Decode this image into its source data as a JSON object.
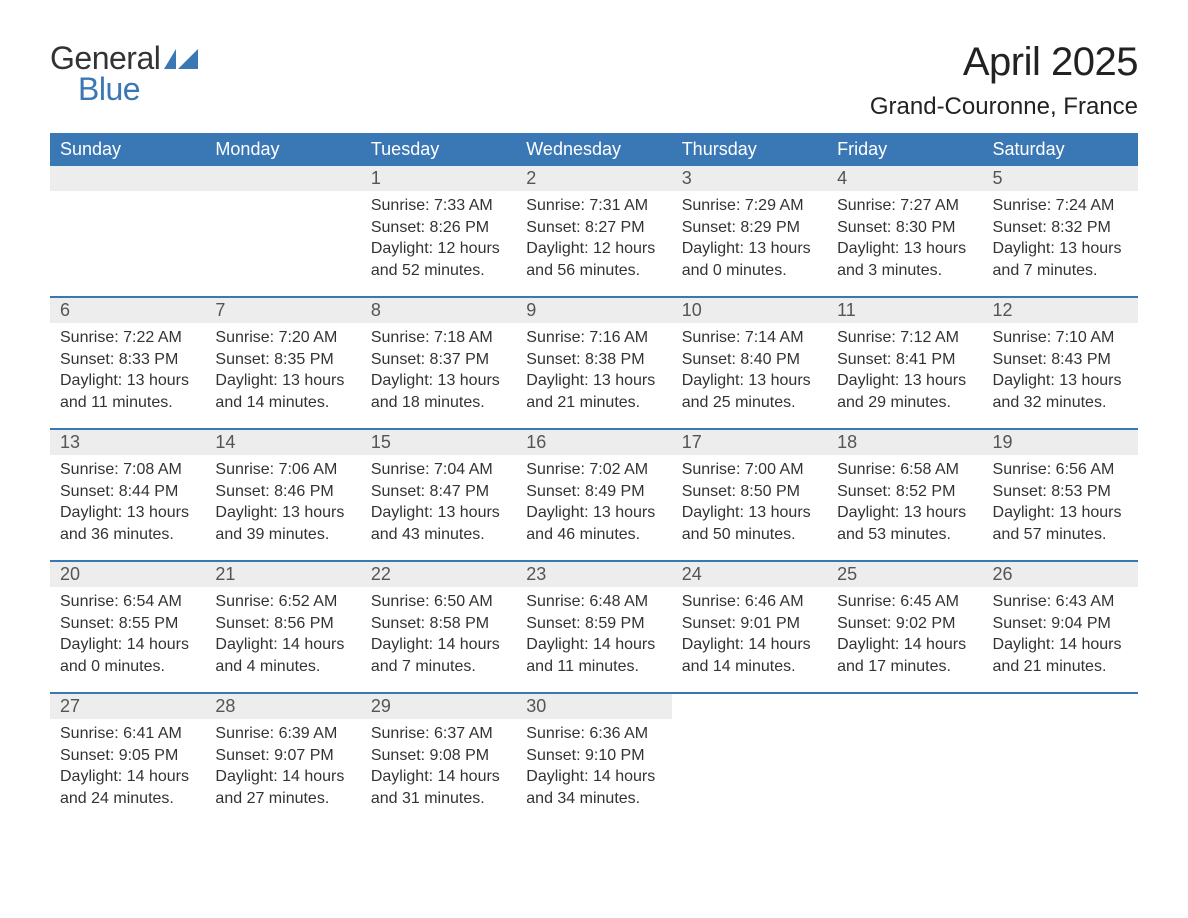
{
  "logo": {
    "text_general": "General",
    "text_blue": "Blue",
    "mark_color": "#3a78b5"
  },
  "header": {
    "month_title": "April 2025",
    "location": "Grand-Couronne, France"
  },
  "colors": {
    "header_bg": "#3a78b5",
    "header_text": "#ffffff",
    "daynum_bg": "#ededed",
    "daynum_text": "#555555",
    "body_text": "#333333",
    "week_border": "#3a78b5",
    "page_bg": "#ffffff"
  },
  "fonts": {
    "title_month_size_pt": 30,
    "title_location_size_pt": 18,
    "header_cell_size_pt": 14,
    "daynum_size_pt": 14,
    "content_size_pt": 12,
    "family": "Segoe UI / Arial"
  },
  "calendar": {
    "day_names": [
      "Sunday",
      "Monday",
      "Tuesday",
      "Wednesday",
      "Thursday",
      "Friday",
      "Saturday"
    ],
    "labels": {
      "sunrise_prefix": "Sunrise: ",
      "sunset_prefix": "Sunset: ",
      "daylight_prefix": "Daylight: "
    },
    "weeks": [
      [
        {
          "blank": true
        },
        {
          "blank": true
        },
        {
          "day": "1",
          "sunrise": "7:33 AM",
          "sunset": "8:26 PM",
          "daylight": "12 hours and 52 minutes."
        },
        {
          "day": "2",
          "sunrise": "7:31 AM",
          "sunset": "8:27 PM",
          "daylight": "12 hours and 56 minutes."
        },
        {
          "day": "3",
          "sunrise": "7:29 AM",
          "sunset": "8:29 PM",
          "daylight": "13 hours and 0 minutes."
        },
        {
          "day": "4",
          "sunrise": "7:27 AM",
          "sunset": "8:30 PM",
          "daylight": "13 hours and 3 minutes."
        },
        {
          "day": "5",
          "sunrise": "7:24 AM",
          "sunset": "8:32 PM",
          "daylight": "13 hours and 7 minutes."
        }
      ],
      [
        {
          "day": "6",
          "sunrise": "7:22 AM",
          "sunset": "8:33 PM",
          "daylight": "13 hours and 11 minutes."
        },
        {
          "day": "7",
          "sunrise": "7:20 AM",
          "sunset": "8:35 PM",
          "daylight": "13 hours and 14 minutes."
        },
        {
          "day": "8",
          "sunrise": "7:18 AM",
          "sunset": "8:37 PM",
          "daylight": "13 hours and 18 minutes."
        },
        {
          "day": "9",
          "sunrise": "7:16 AM",
          "sunset": "8:38 PM",
          "daylight": "13 hours and 21 minutes."
        },
        {
          "day": "10",
          "sunrise": "7:14 AM",
          "sunset": "8:40 PM",
          "daylight": "13 hours and 25 minutes."
        },
        {
          "day": "11",
          "sunrise": "7:12 AM",
          "sunset": "8:41 PM",
          "daylight": "13 hours and 29 minutes."
        },
        {
          "day": "12",
          "sunrise": "7:10 AM",
          "sunset": "8:43 PM",
          "daylight": "13 hours and 32 minutes."
        }
      ],
      [
        {
          "day": "13",
          "sunrise": "7:08 AM",
          "sunset": "8:44 PM",
          "daylight": "13 hours and 36 minutes."
        },
        {
          "day": "14",
          "sunrise": "7:06 AM",
          "sunset": "8:46 PM",
          "daylight": "13 hours and 39 minutes."
        },
        {
          "day": "15",
          "sunrise": "7:04 AM",
          "sunset": "8:47 PM",
          "daylight": "13 hours and 43 minutes."
        },
        {
          "day": "16",
          "sunrise": "7:02 AM",
          "sunset": "8:49 PM",
          "daylight": "13 hours and 46 minutes."
        },
        {
          "day": "17",
          "sunrise": "7:00 AM",
          "sunset": "8:50 PM",
          "daylight": "13 hours and 50 minutes."
        },
        {
          "day": "18",
          "sunrise": "6:58 AM",
          "sunset": "8:52 PM",
          "daylight": "13 hours and 53 minutes."
        },
        {
          "day": "19",
          "sunrise": "6:56 AM",
          "sunset": "8:53 PM",
          "daylight": "13 hours and 57 minutes."
        }
      ],
      [
        {
          "day": "20",
          "sunrise": "6:54 AM",
          "sunset": "8:55 PM",
          "daylight": "14 hours and 0 minutes."
        },
        {
          "day": "21",
          "sunrise": "6:52 AM",
          "sunset": "8:56 PM",
          "daylight": "14 hours and 4 minutes."
        },
        {
          "day": "22",
          "sunrise": "6:50 AM",
          "sunset": "8:58 PM",
          "daylight": "14 hours and 7 minutes."
        },
        {
          "day": "23",
          "sunrise": "6:48 AM",
          "sunset": "8:59 PM",
          "daylight": "14 hours and 11 minutes."
        },
        {
          "day": "24",
          "sunrise": "6:46 AM",
          "sunset": "9:01 PM",
          "daylight": "14 hours and 14 minutes."
        },
        {
          "day": "25",
          "sunrise": "6:45 AM",
          "sunset": "9:02 PM",
          "daylight": "14 hours and 17 minutes."
        },
        {
          "day": "26",
          "sunrise": "6:43 AM",
          "sunset": "9:04 PM",
          "daylight": "14 hours and 21 minutes."
        }
      ],
      [
        {
          "day": "27",
          "sunrise": "6:41 AM",
          "sunset": "9:05 PM",
          "daylight": "14 hours and 24 minutes."
        },
        {
          "day": "28",
          "sunrise": "6:39 AM",
          "sunset": "9:07 PM",
          "daylight": "14 hours and 27 minutes."
        },
        {
          "day": "29",
          "sunrise": "6:37 AM",
          "sunset": "9:08 PM",
          "daylight": "14 hours and 31 minutes."
        },
        {
          "day": "30",
          "sunrise": "6:36 AM",
          "sunset": "9:10 PM",
          "daylight": "14 hours and 34 minutes."
        },
        {
          "trailing": true
        },
        {
          "trailing": true
        },
        {
          "trailing": true
        }
      ]
    ]
  }
}
